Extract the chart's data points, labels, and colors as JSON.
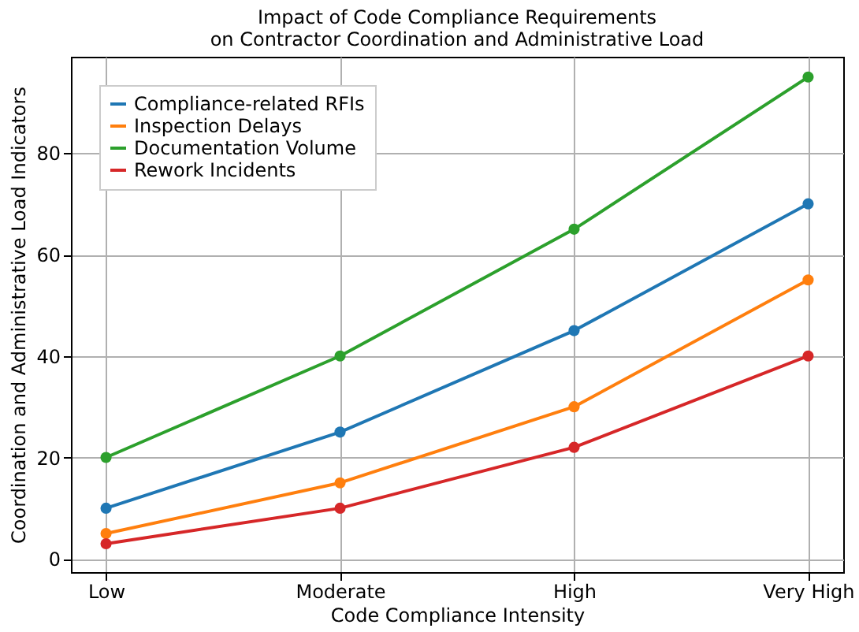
{
  "chart_data": {
    "type": "line",
    "title": "Impact of Code Compliance Requirements on Contractor Coordination and Administrative Load",
    "xlabel": "Code Compliance Intensity",
    "ylabel": "Coordination and Administrative Load Indicators",
    "categories": [
      "Low",
      "Moderate",
      "High",
      "Very High"
    ],
    "series": [
      {
        "name": "Compliance-related RFIs",
        "color": "#1f77b4",
        "values": [
          10,
          25,
          45,
          70
        ]
      },
      {
        "name": "Inspection Delays",
        "color": "#ff7f0e",
        "values": [
          5,
          15,
          30,
          55
        ]
      },
      {
        "name": "Documentation Volume",
        "color": "#2ca02c",
        "values": [
          20,
          40,
          65,
          95
        ]
      },
      {
        "name": "Rework Incidents",
        "color": "#d62728",
        "values": [
          3,
          10,
          22,
          40
        ]
      }
    ],
    "ylim": [
      -2.6,
      99
    ],
    "yticks": [
      0,
      20,
      40,
      60,
      80
    ],
    "grid": true,
    "legend": "top left",
    "marker": "circle",
    "line_style": "solid"
  }
}
